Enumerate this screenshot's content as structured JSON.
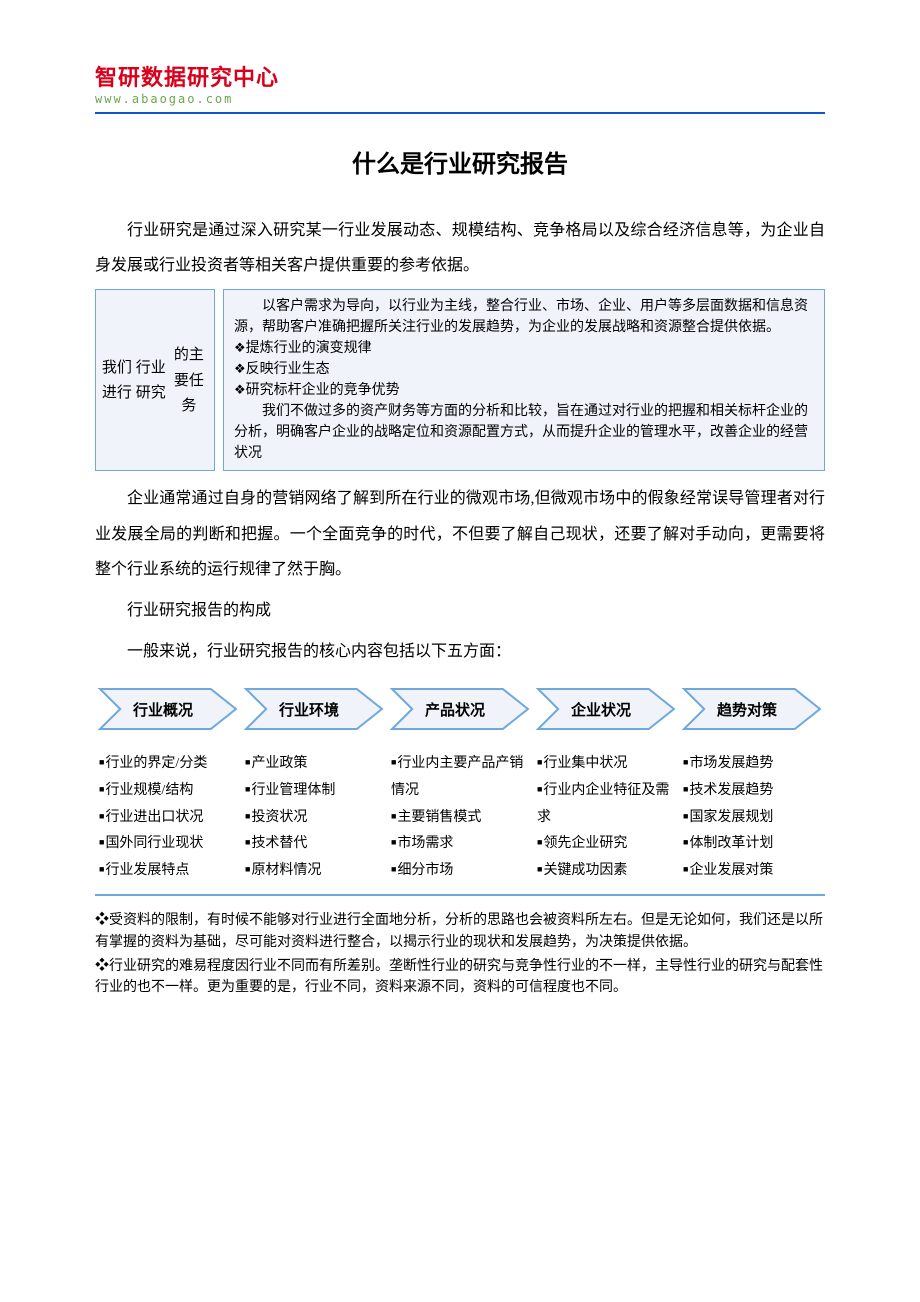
{
  "logo": {
    "line1": "智研数据研究中心",
    "line2": "www.abaogao.com"
  },
  "title": "什么是行业研究报告",
  "para1": "行业研究是通过深入研究某一行业发展动态、规模结构、竞争格局以及综合经济信息等，为企业自身发展或行业投资者等相关客户提供重要的参考依据。",
  "box1": {
    "left": "我们进行\n行业研究\n的主要任务",
    "intro": "以客户需求为导向，以行业为主线，整合行业、市场、企业、用户等多层面数据和信息资源，帮助客户准确把握所关注行业的发展趋势，为企业的发展战略和资源整合提供依据。",
    "bullets": [
      "提炼行业的演变规律",
      "反映行业生态",
      "研究标杆企业的竞争优势"
    ],
    "outro": "我们不做过多的资产财务等方面的分析和比较，旨在通过对行业的把握和相关标杆企业的分析，明确客户企业的战略定位和资源配置方式，从而提升企业的管理水平，改善企业的经营状况"
  },
  "para2": "企业通常通过自身的营销网络了解到所在行业的微观市场,但微观市场中的假象经常误导管理者对行业发展全局的判断和把握。一个全面竞争的时代，不但要了解自己现状，还要了解对手动向，更需要将整个行业系统的运行规律了然于胸。",
  "para3": "行业研究报告的构成",
  "para4": "一般来说，行业研究报告的核心内容包括以下五方面：",
  "chevrons": {
    "labels": [
      "行业概况",
      "行业环境",
      "产品状况",
      "企业状况",
      "趋势对策"
    ],
    "fill": "#f0f4fa",
    "stroke": "#6fa8dc",
    "stroke_width": 2
  },
  "columns": [
    [
      "行业的界定/分类",
      "行业规模/结构",
      "行业进出口状况",
      "国外同行业现状",
      "行业发展特点"
    ],
    [
      "产业政策",
      "行业管理体制",
      "投资状况",
      "技术替代",
      "原材料情况"
    ],
    [
      "行业内主要产品产销情况",
      "主要销售模式",
      "市场需求",
      "细分市场"
    ],
    [
      "行业集中状况",
      "行业内企业特征及需求",
      "领先企业研究",
      "关键成功因素"
    ],
    [
      "市场发展趋势",
      "技术发展趋势",
      "国家发展规划",
      "体制改革计划",
      "企业发展对策"
    ]
  ],
  "notes": [
    "❖受资料的限制，有时候不能够对行业进行全面地分析，分析的思路也会被资料所左右。但是无论如何，我们还是以所有掌握的资料为基础，尽可能对资料进行整合，以揭示行业的现状和发展趋势，为决策提供依据。",
    "❖行业研究的难易程度因行业不同而有所差别。垄断性行业的研究与竞争性行业的不一样，主导性行业的研究与配套性行业的也不一样。更为重要的是，行业不同，资料来源不同，资料的可信程度也不同。"
  ],
  "colors": {
    "border": "#6fa8dc",
    "box_bg": "#f0f4fa",
    "rule": "#1155cc"
  }
}
